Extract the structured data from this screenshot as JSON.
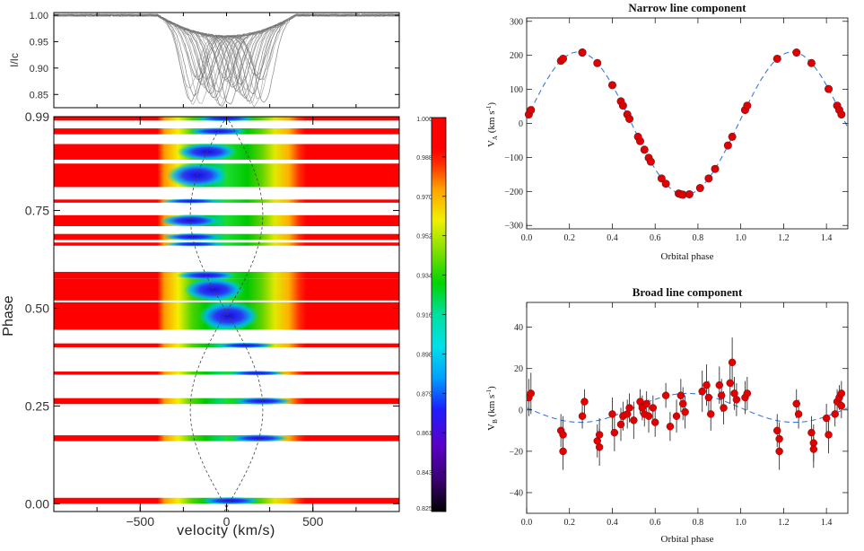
{
  "chart_data": [
    {
      "id": "profiles",
      "type": "line",
      "ylabel": "I/Ic",
      "xlim": [
        -1000,
        1000
      ],
      "ylim": [
        0.825,
        1.005
      ],
      "yticks": [
        0.85,
        0.9,
        0.95,
        1.0
      ],
      "ytick_labels": [
        "0.85",
        "0.90",
        "0.95",
        "1.00"
      ],
      "line_count": 40,
      "continuum": 1.0,
      "broad_depth": 0.04,
      "broad_halfwidth": 400,
      "narrow_depth_range": [
        0.08,
        0.14
      ],
      "narrow_center_range": [
        -220,
        220
      ]
    },
    {
      "id": "dynamic",
      "type": "heatmap",
      "xlabel": "velocity (km/s)",
      "ylabel": "Phase",
      "xlim": [
        -1000,
        1000
      ],
      "ylim": [
        -0.02,
        0.99
      ],
      "xticks": [
        -500,
        0,
        500
      ],
      "xtick_labels": [
        "−500",
        "0",
        "500"
      ],
      "yticks": [
        0.0,
        0.25,
        0.5,
        0.75,
        0.99
      ],
      "ytick_labels": [
        "0.00",
        "0.25",
        "0.50",
        "0.75",
        "0.99"
      ],
      "phase_bands": [
        [
          0.0,
          0.015
        ],
        [
          0.16,
          0.015
        ],
        [
          0.255,
          0.015
        ],
        [
          0.33,
          0.008
        ],
        [
          0.4,
          0.01
        ],
        [
          0.445,
          0.07
        ],
        [
          0.52,
          0.055
        ],
        [
          0.575,
          0.018
        ],
        [
          0.66,
          0.008
        ],
        [
          0.675,
          0.015
        ],
        [
          0.71,
          0.028
        ],
        [
          0.77,
          0.008
        ],
        [
          0.81,
          0.06
        ],
        [
          0.88,
          0.04
        ],
        [
          0.945,
          0.015
        ],
        [
          0.98,
          0.01
        ]
      ],
      "semi_amplitude": 210,
      "phase_offset": 0.01
    },
    {
      "id": "colorbar",
      "type": "colorbar",
      "range": [
        0.825,
        1.006
      ],
      "tick_labels": [
        "0.825",
        "0.843",
        "0.861",
        "0.879",
        "0.898",
        "0.916",
        "0.934",
        "0.952",
        "0.970",
        "0.988",
        "1.006"
      ]
    },
    {
      "id": "narrow",
      "type": "scatter",
      "title": "Narrow line component",
      "xlabel": "Orbital phase",
      "ylabel": "V_A (km s⁻¹)",
      "ylabel_main": "V",
      "ylabel_sub": "A",
      "ylabel_unit": " (km s",
      "ylabel_exp": "-1",
      "ylabel_close": ")",
      "xlim": [
        0.0,
        1.5
      ],
      "ylim": [
        -310,
        310
      ],
      "xticks": [
        0.0,
        0.2,
        0.4,
        0.6,
        0.8,
        1.0,
        1.2,
        1.4
      ],
      "xtick_labels": [
        "0.0",
        "0.2",
        "0.4",
        "0.6",
        "0.8",
        "1.0",
        "1.2",
        "1.4"
      ],
      "yticks": [
        -300,
        -200,
        -100,
        0,
        100,
        200,
        300
      ],
      "ytick_labels": [
        "−300",
        "−200",
        "−100",
        "0",
        "100",
        "200",
        "300"
      ],
      "fit": {
        "gamma": 0,
        "K": 210,
        "phase_offset": 0.01
      },
      "phases": [
        0.01,
        0.02,
        0.16,
        0.17,
        0.26,
        0.26,
        0.33,
        0.4,
        0.44,
        0.45,
        0.47,
        0.48,
        0.52,
        0.53,
        0.55,
        0.57,
        0.58,
        0.63,
        0.65,
        0.71,
        0.72,
        0.73,
        0.76,
        0.81,
        0.85,
        0.88,
        0.94,
        0.96,
        1.02,
        1.03,
        1.17,
        1.26,
        1.33,
        1.41,
        1.45,
        1.46,
        1.47
      ]
    },
    {
      "id": "broad",
      "type": "scatter",
      "title": "Broad line component",
      "xlabel": "Orbital phase",
      "ylabel": "V_B (km s⁻¹)",
      "ylabel_main": "V",
      "ylabel_sub": "B",
      "ylabel_unit": " (km s",
      "ylabel_exp": "-1",
      "ylabel_close": ")",
      "xlim": [
        0.0,
        1.5
      ],
      "ylim": [
        -50,
        52
      ],
      "xticks": [
        0.0,
        0.2,
        0.4,
        0.6,
        0.8,
        1.0,
        1.2,
        1.4
      ],
      "xtick_labels": [
        "0.0",
        "0.2",
        "0.4",
        "0.6",
        "0.8",
        "1.0",
        "1.2",
        "1.4"
      ],
      "yticks": [
        -40,
        -20,
        0,
        20,
        40
      ],
      "ytick_labels": [
        "−40",
        "−20",
        "0",
        "20",
        "40"
      ],
      "fit": {
        "gamma": 1,
        "K": 7,
        "phase_offset": 0.0
      },
      "points": [
        [
          0.01,
          6,
          9
        ],
        [
          0.02,
          8,
          10
        ],
        [
          0.16,
          -10,
          8
        ],
        [
          0.17,
          -12,
          9
        ],
        [
          0.17,
          -20,
          9
        ],
        [
          0.26,
          -3,
          6
        ],
        [
          0.27,
          4,
          6
        ],
        [
          0.33,
          -15,
          8
        ],
        [
          0.34,
          -18,
          9
        ],
        [
          0.34,
          -12,
          8
        ],
        [
          0.4,
          -2,
          8
        ],
        [
          0.41,
          -11,
          9
        ],
        [
          0.44,
          -7,
          8
        ],
        [
          0.45,
          -3,
          7
        ],
        [
          0.47,
          -2,
          7
        ],
        [
          0.48,
          1,
          7
        ],
        [
          0.5,
          -5,
          9
        ],
        [
          0.53,
          4,
          6
        ],
        [
          0.54,
          1,
          6
        ],
        [
          0.55,
          -2,
          6
        ],
        [
          0.56,
          3,
          6
        ],
        [
          0.57,
          -3,
          8
        ],
        [
          0.59,
          1,
          6
        ],
        [
          0.6,
          -6,
          7
        ],
        [
          0.65,
          7,
          6
        ],
        [
          0.67,
          -8,
          7
        ],
        [
          0.7,
          -3,
          8
        ],
        [
          0.72,
          7,
          8
        ],
        [
          0.73,
          3,
          8
        ],
        [
          0.74,
          -1,
          8
        ],
        [
          0.82,
          9,
          10
        ],
        [
          0.84,
          12,
          10
        ],
        [
          0.85,
          6,
          8
        ],
        [
          0.86,
          -2,
          8
        ],
        [
          0.9,
          12,
          9
        ],
        [
          0.91,
          7,
          8
        ],
        [
          0.92,
          1,
          8
        ],
        [
          0.95,
          13,
          10
        ],
        [
          0.96,
          23,
          12
        ],
        [
          0.97,
          8,
          8
        ],
        [
          0.98,
          5,
          8
        ],
        [
          1.02,
          6,
          8
        ],
        [
          1.03,
          8,
          8
        ],
        [
          1.17,
          -10,
          8
        ],
        [
          1.18,
          -14,
          8
        ],
        [
          1.18,
          -20,
          9
        ],
        [
          1.26,
          3,
          7
        ],
        [
          1.27,
          -2,
          7
        ],
        [
          1.33,
          -11,
          8
        ],
        [
          1.34,
          -16,
          9
        ],
        [
          1.34,
          -19,
          9
        ],
        [
          1.4,
          -4,
          7
        ],
        [
          1.41,
          -12,
          9
        ],
        [
          1.44,
          -2,
          6
        ],
        [
          1.45,
          4,
          6
        ],
        [
          1.46,
          6,
          6
        ],
        [
          1.47,
          8,
          6
        ],
        [
          1.47,
          2,
          6
        ]
      ]
    }
  ]
}
